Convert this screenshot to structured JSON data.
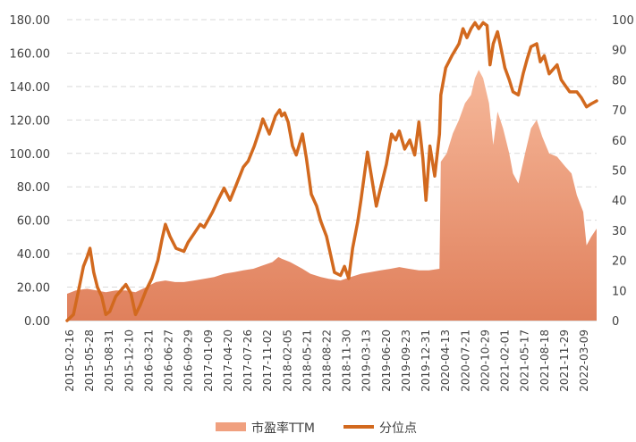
{
  "chart_data": {
    "type": "area+line",
    "title": "",
    "legend": {
      "position": "bottom"
    },
    "grid": {
      "horizontal": true,
      "style": "dashed",
      "color": "#d9d9d9"
    },
    "y_left": {
      "min": 0,
      "max": 180,
      "step": 20,
      "tick_labels": [
        "0.00",
        "20.00",
        "40.00",
        "60.00",
        "80.00",
        "100.00",
        "120.00",
        "140.00",
        "160.00",
        "180.00"
      ]
    },
    "y_right": {
      "min": 0,
      "max": 100,
      "step": 10,
      "tick_labels": [
        "0",
        "10",
        "20",
        "30",
        "40",
        "50",
        "60",
        "70",
        "80",
        "90",
        "100"
      ]
    },
    "x_tick_labels": [
      "2015-02-16",
      "2015-05-28",
      "2015-08-31",
      "2015-12-10",
      "2016-03-21",
      "2016-06-27",
      "2016-09-29",
      "2017-01-09",
      "2017-04-20",
      "2017-07-26",
      "2017-11-02",
      "2018-02-05",
      "2018-05-21",
      "2018-08-22",
      "2018-11-30",
      "2019-03-13",
      "2019-06-20",
      "2019-09-23",
      "2019-12-31",
      "2020-04-13",
      "2020-07-21",
      "2020-10-29",
      "2021-02-01",
      "2021-05-17",
      "2021-08-18",
      "2021-11-29",
      "2022-03-09"
    ],
    "series": [
      {
        "name": "市盈率TTM",
        "type": "area",
        "axis": "left",
        "color": "#f0a07f",
        "points": [
          [
            "2015-02-16",
            16
          ],
          [
            "2015-04-01",
            18
          ],
          [
            "2015-05-28",
            19
          ],
          [
            "2015-07-15",
            18
          ],
          [
            "2015-08-31",
            17
          ],
          [
            "2015-10-20",
            18
          ],
          [
            "2015-12-10",
            18
          ],
          [
            "2016-01-28",
            17
          ],
          [
            "2016-03-21",
            20
          ],
          [
            "2016-05-10",
            23
          ],
          [
            "2016-06-27",
            24
          ],
          [
            "2016-08-15",
            23
          ],
          [
            "2016-09-29",
            23
          ],
          [
            "2016-11-20",
            24
          ],
          [
            "2017-01-09",
            25
          ],
          [
            "2017-03-01",
            26
          ],
          [
            "2017-04-20",
            28
          ],
          [
            "2017-06-10",
            29
          ],
          [
            "2017-07-26",
            30
          ],
          [
            "2017-09-15",
            31
          ],
          [
            "2017-11-02",
            33
          ],
          [
            "2017-12-20",
            35
          ],
          [
            "2018-01-20",
            38
          ],
          [
            "2018-02-05",
            37
          ],
          [
            "2018-03-20",
            35
          ],
          [
            "2018-05-21",
            31
          ],
          [
            "2018-07-01",
            28
          ],
          [
            "2018-08-22",
            26
          ],
          [
            "2018-10-01",
            25
          ],
          [
            "2018-11-30",
            24
          ],
          [
            "2019-01-20",
            26
          ],
          [
            "2019-03-13",
            28
          ],
          [
            "2019-05-01",
            29
          ],
          [
            "2019-06-20",
            30
          ],
          [
            "2019-08-10",
            31
          ],
          [
            "2019-09-23",
            32
          ],
          [
            "2019-11-10",
            31
          ],
          [
            "2019-12-31",
            30
          ],
          [
            "2020-02-20",
            30
          ],
          [
            "2020-04-13",
            31
          ],
          [
            "2020-04-20",
            95
          ],
          [
            "2020-05-20",
            100
          ],
          [
            "2020-06-20",
            112
          ],
          [
            "2020-07-21",
            120
          ],
          [
            "2020-08-20",
            130
          ],
          [
            "2020-09-20",
            135
          ],
          [
            "2020-10-10",
            145
          ],
          [
            "2020-10-29",
            150
          ],
          [
            "2020-11-20",
            145
          ],
          [
            "2020-12-20",
            130
          ],
          [
            "2021-01-10",
            105
          ],
          [
            "2021-02-01",
            125
          ],
          [
            "2021-03-01",
            115
          ],
          [
            "2021-04-01",
            100
          ],
          [
            "2021-04-20",
            88
          ],
          [
            "2021-05-17",
            82
          ],
          [
            "2021-06-20",
            100
          ],
          [
            "2021-07-20",
            115
          ],
          [
            "2021-08-18",
            120
          ],
          [
            "2021-09-15",
            110
          ],
          [
            "2021-10-20",
            100
          ],
          [
            "2021-11-29",
            98
          ],
          [
            "2022-01-10",
            92
          ],
          [
            "2022-02-10",
            88
          ],
          [
            "2022-03-09",
            75
          ],
          [
            "2022-04-10",
            65
          ],
          [
            "2022-04-27",
            45
          ],
          [
            "2022-05-20",
            50
          ],
          [
            "2022-06-17",
            55
          ]
        ]
      },
      {
        "name": "分位点",
        "type": "line",
        "axis": "right",
        "color": "#d2691e",
        "points": [
          [
            "2015-02-16",
            0
          ],
          [
            "2015-03-20",
            2
          ],
          [
            "2015-04-15",
            10
          ],
          [
            "2015-05-10",
            18
          ],
          [
            "2015-05-28",
            21
          ],
          [
            "2015-06-12",
            24
          ],
          [
            "2015-07-01",
            16
          ],
          [
            "2015-07-20",
            11
          ],
          [
            "2015-08-10",
            8
          ],
          [
            "2015-08-31",
            2
          ],
          [
            "2015-09-20",
            3
          ],
          [
            "2015-10-20",
            8
          ],
          [
            "2015-11-15",
            10
          ],
          [
            "2015-12-10",
            12
          ],
          [
            "2016-01-05",
            9
          ],
          [
            "2016-01-28",
            2
          ],
          [
            "2016-02-20",
            5
          ],
          [
            "2016-03-21",
            10
          ],
          [
            "2016-04-20",
            14
          ],
          [
            "2016-05-20",
            20
          ],
          [
            "2016-06-10",
            27
          ],
          [
            "2016-06-27",
            32
          ],
          [
            "2016-07-20",
            28
          ],
          [
            "2016-08-20",
            24
          ],
          [
            "2016-09-29",
            23
          ],
          [
            "2016-10-20",
            26
          ],
          [
            "2016-11-20",
            29
          ],
          [
            "2016-12-20",
            32
          ],
          [
            "2017-01-09",
            31
          ],
          [
            "2017-02-20",
            36
          ],
          [
            "2017-03-20",
            40
          ],
          [
            "2017-04-20",
            44
          ],
          [
            "2017-05-20",
            40
          ],
          [
            "2017-06-20",
            45
          ],
          [
            "2017-07-26",
            51
          ],
          [
            "2017-08-20",
            53
          ],
          [
            "2017-09-20",
            58
          ],
          [
            "2017-10-20",
            64
          ],
          [
            "2017-11-02",
            67
          ],
          [
            "2017-12-05",
            62
          ],
          [
            "2018-01-05",
            68
          ],
          [
            "2018-01-26",
            70
          ],
          [
            "2018-02-05",
            68
          ],
          [
            "2018-02-20",
            69
          ],
          [
            "2018-03-10",
            66
          ],
          [
            "2018-04-01",
            58
          ],
          [
            "2018-04-20",
            55
          ],
          [
            "2018-05-21",
            62
          ],
          [
            "2018-06-10",
            54
          ],
          [
            "2018-07-05",
            42
          ],
          [
            "2018-08-01",
            38
          ],
          [
            "2018-08-22",
            33
          ],
          [
            "2018-09-20",
            28
          ],
          [
            "2018-10-10",
            22
          ],
          [
            "2018-10-30",
            16
          ],
          [
            "2018-11-30",
            15
          ],
          [
            "2018-12-20",
            18
          ],
          [
            "2019-01-10",
            14
          ],
          [
            "2019-01-30",
            24
          ],
          [
            "2019-02-25",
            33
          ],
          [
            "2019-03-13",
            40
          ],
          [
            "2019-04-15",
            56
          ],
          [
            "2019-05-10",
            46
          ],
          [
            "2019-05-30",
            38
          ],
          [
            "2019-06-20",
            44
          ],
          [
            "2019-07-20",
            52
          ],
          [
            "2019-08-15",
            62
          ],
          [
            "2019-09-05",
            60
          ],
          [
            "2019-09-23",
            63
          ],
          [
            "2019-10-20",
            57
          ],
          [
            "2019-11-15",
            60
          ],
          [
            "2019-12-10",
            55
          ],
          [
            "2019-12-31",
            66
          ],
          [
            "2020-01-20",
            54
          ],
          [
            "2020-02-05",
            40
          ],
          [
            "2020-02-25",
            58
          ],
          [
            "2020-03-20",
            48
          ],
          [
            "2020-04-13",
            62
          ],
          [
            "2020-04-20",
            75
          ],
          [
            "2020-05-15",
            84
          ],
          [
            "2020-06-15",
            88
          ],
          [
            "2020-07-21",
            92
          ],
          [
            "2020-08-10",
            97
          ],
          [
            "2020-08-30",
            94
          ],
          [
            "2020-09-20",
            97
          ],
          [
            "2020-10-10",
            99
          ],
          [
            "2020-10-29",
            97
          ],
          [
            "2020-11-20",
            99
          ],
          [
            "2020-12-10",
            98
          ],
          [
            "2020-12-25",
            85
          ],
          [
            "2021-01-10",
            92
          ],
          [
            "2021-02-01",
            96
          ],
          [
            "2021-02-20",
            90
          ],
          [
            "2021-03-10",
            84
          ],
          [
            "2021-04-01",
            80
          ],
          [
            "2021-04-20",
            76
          ],
          [
            "2021-05-17",
            75
          ],
          [
            "2021-06-10",
            82
          ],
          [
            "2021-07-01",
            87
          ],
          [
            "2021-07-20",
            91
          ],
          [
            "2021-08-18",
            92
          ],
          [
            "2021-09-05",
            86
          ],
          [
            "2021-09-25",
            88
          ],
          [
            "2021-10-20",
            82
          ],
          [
            "2021-11-29",
            85
          ],
          [
            "2021-12-20",
            80
          ],
          [
            "2022-01-10",
            78
          ],
          [
            "2022-02-01",
            76
          ],
          [
            "2022-03-09",
            76
          ],
          [
            "2022-04-01",
            74
          ],
          [
            "2022-04-27",
            71
          ],
          [
            "2022-05-20",
            72
          ],
          [
            "2022-06-17",
            73
          ]
        ]
      }
    ]
  }
}
